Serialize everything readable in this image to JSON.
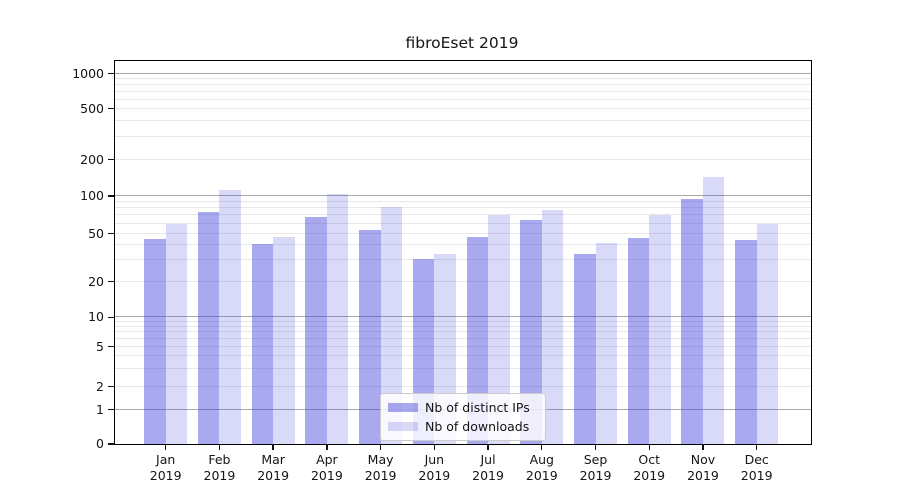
{
  "chart": {
    "title": "fibroEset 2019",
    "legend": {
      "items": [
        {
          "label": "Nb of distinct IPs",
          "color_key": "ips_bar"
        },
        {
          "label": "Nb of downloads",
          "color_key": "downloads_bar"
        }
      ]
    }
  },
  "colors": {
    "ips_bar": "rgba(65,65,220,0.45)",
    "downloads_bar": "rgba(65,65,220,0.20)",
    "grid_major": "#a9a9a9",
    "grid_minor": "#e7e7e7",
    "spine": "#000000",
    "tick": "#111111",
    "text": "#151515",
    "legend_border": "#cccccc",
    "legend_bg": "rgba(255,255,255,0.8)"
  },
  "chart_data": {
    "type": "bar",
    "title": "fibroEset 2019",
    "categories": [
      "Jan 2019",
      "Feb 2019",
      "Mar 2019",
      "Apr 2019",
      "May 2019",
      "Jun 2019",
      "Jul 2019",
      "Aug 2019",
      "Sep 2019",
      "Oct 2019",
      "Nov 2019",
      "Dec 2019"
    ],
    "series": [
      {
        "name": "Nb of distinct IPs",
        "values": [
          45,
          75,
          41,
          68,
          54,
          31,
          47,
          65,
          34,
          46,
          95,
          44
        ]
      },
      {
        "name": "Nb of downloads",
        "values": [
          60,
          112,
          47,
          104,
          82,
          34,
          70,
          77,
          42,
          70,
          145,
          60
        ]
      }
    ],
    "yscale": "symlog",
    "yticks": [
      0,
      1,
      2,
      5,
      10,
      20,
      50,
      100,
      200,
      500,
      1000
    ],
    "ylim": [
      0,
      1300
    ],
    "grid": "both",
    "legend_position": "lower center"
  }
}
